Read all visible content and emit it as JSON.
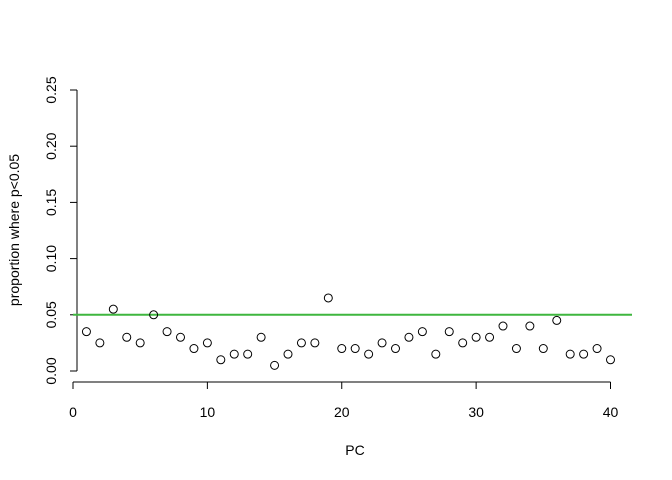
{
  "chart_data": {
    "type": "scatter",
    "title": "",
    "xlabel": "PC",
    "ylabel": "proportion where p<0.05",
    "xlim": [
      0,
      41.6
    ],
    "ylim": [
      0,
      0.25
    ],
    "x_ticks": [
      0,
      10,
      20,
      30,
      40
    ],
    "x_tick_labels": [
      "0",
      "10",
      "20",
      "30",
      "40"
    ],
    "y_ticks": [
      0,
      0.05,
      0.1,
      0.15,
      0.2,
      0.25
    ],
    "y_tick_labels": [
      "0.00",
      "0.05",
      "0.10",
      "0.15",
      "0.20",
      "0.25"
    ],
    "grid": false,
    "series": [
      {
        "x": [
          1,
          2,
          3,
          4,
          5,
          6,
          7,
          8,
          9,
          10,
          11,
          12,
          13,
          14,
          15,
          16,
          17,
          18,
          19,
          20,
          21,
          22,
          23,
          24,
          25,
          26,
          27,
          28,
          29,
          30,
          31,
          32,
          33,
          34,
          35,
          36,
          37,
          38,
          39,
          40
        ],
        "y": [
          0.035,
          0.025,
          0.055,
          0.03,
          0.025,
          0.05,
          0.035,
          0.03,
          0.02,
          0.025,
          0.01,
          0.015,
          0.015,
          0.03,
          0.005,
          0.015,
          0.025,
          0.025,
          0.065,
          0.02,
          0.02,
          0.015,
          0.025,
          0.02,
          0.03,
          0.035,
          0.015,
          0.035,
          0.025,
          0.03,
          0.03,
          0.04,
          0.02,
          0.04,
          0.02,
          0.045,
          0.015,
          0.015,
          0.02,
          0.01
        ],
        "marker": "open-circle",
        "color": "#000000"
      }
    ],
    "reference_lines": [
      {
        "orientation": "horizontal",
        "y": 0.05,
        "color": "#3fb63f"
      }
    ]
  }
}
